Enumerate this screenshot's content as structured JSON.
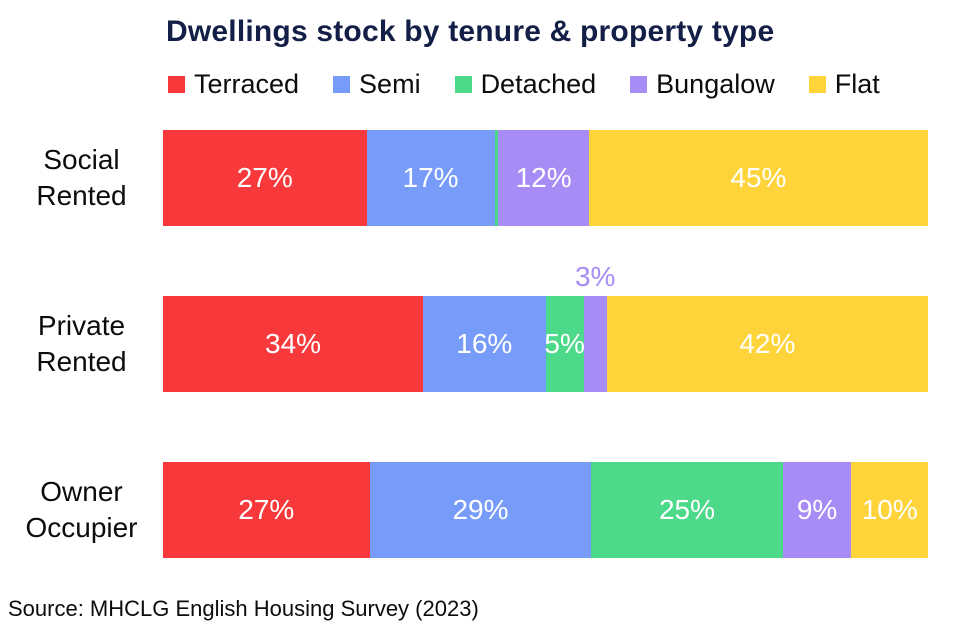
{
  "title": "Dwellings stock by tenure & property type",
  "source": "Source: MHCLG English Housing Survey (2023)",
  "colors": {
    "title_navy": "#131F47",
    "text_black": "#0B0C0C",
    "label_on_bar": "#FFFFFF",
    "terraced_red": "#F8393C",
    "semi_blue": "#779BF9",
    "detached_green": "#4DD98A",
    "bungalow_purple": "#A78CF6",
    "flat_yellow": "#FFD43B"
  },
  "chart_data": {
    "type": "bar",
    "orientation": "horizontal",
    "stacked": true,
    "unit": "%",
    "title": "Dwellings stock by tenure & property type",
    "xlabel": "",
    "ylabel": "",
    "xlim": [
      0,
      100
    ],
    "grid": false,
    "legend_position": "top",
    "categories": [
      "Social Rented",
      "Private Rented",
      "Owner Occupier"
    ],
    "series": [
      {
        "name": "Terraced",
        "color": "#F8393C",
        "values": [
          27,
          34,
          27
        ]
      },
      {
        "name": "Semi",
        "color": "#779BF9",
        "values": [
          17,
          16,
          29
        ]
      },
      {
        "name": "Detached",
        "color": "#4DD98A",
        "values": [
          0.5,
          5,
          25
        ]
      },
      {
        "name": "Bungalow",
        "color": "#A78CF6",
        "values": [
          12,
          3,
          9
        ]
      },
      {
        "name": "Flat",
        "color": "#FFD43B",
        "values": [
          45,
          42,
          10
        ]
      }
    ],
    "labels": [
      [
        "27%",
        "17%",
        "",
        "12%",
        "45%"
      ],
      [
        "34%",
        "16%",
        "5%",
        "3%",
        "42%"
      ],
      [
        "27%",
        "29%",
        "25%",
        "9%",
        "10%"
      ]
    ],
    "label_positions": [
      [
        "inside",
        "inside",
        "none",
        "inside",
        "inside"
      ],
      [
        "inside",
        "inside",
        "inside",
        "above",
        "inside"
      ],
      [
        "inside",
        "inside",
        "inside",
        "inside",
        "inside"
      ]
    ],
    "rows": [
      {
        "label_lines": [
          "Social",
          "Rented"
        ]
      },
      {
        "label_lines": [
          "Private",
          "Rented"
        ]
      },
      {
        "label_lines": [
          "Owner",
          "Occupier"
        ]
      }
    ]
  }
}
